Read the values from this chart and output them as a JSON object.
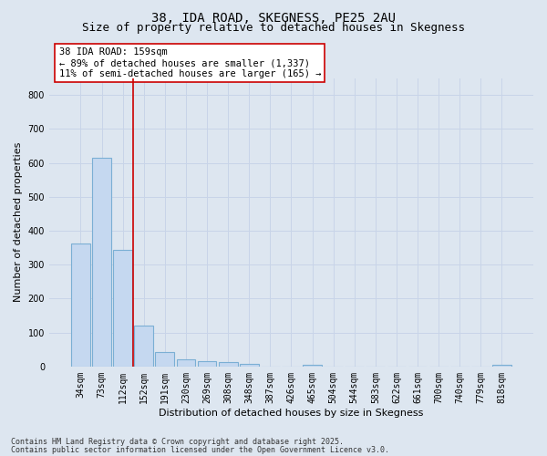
{
  "title1": "38, IDA ROAD, SKEGNESS, PE25 2AU",
  "title2": "Size of property relative to detached houses in Skegness",
  "xlabel": "Distribution of detached houses by size in Skegness",
  "ylabel": "Number of detached properties",
  "categories": [
    "34sqm",
    "73sqm",
    "112sqm",
    "152sqm",
    "191sqm",
    "230sqm",
    "269sqm",
    "308sqm",
    "348sqm",
    "387sqm",
    "426sqm",
    "465sqm",
    "504sqm",
    "544sqm",
    "583sqm",
    "622sqm",
    "661sqm",
    "700sqm",
    "740sqm",
    "779sqm",
    "818sqm"
  ],
  "values": [
    362,
    616,
    345,
    120,
    42,
    22,
    17,
    14,
    8,
    0,
    0,
    5,
    0,
    0,
    0,
    0,
    0,
    0,
    0,
    0,
    4
  ],
  "bar_color": "#c5d8f0",
  "bar_edge_color": "#7bafd4",
  "vline_color": "#cc0000",
  "annotation_text": "38 IDA ROAD: 159sqm\n← 89% of detached houses are smaller (1,337)\n11% of semi-detached houses are larger (165) →",
  "annotation_box_color": "#ffffff",
  "annotation_box_edge": "#cc0000",
  "grid_color": "#c8d4e8",
  "background_color": "#dde6f0",
  "ylim": [
    0,
    850
  ],
  "yticks": [
    0,
    100,
    200,
    300,
    400,
    500,
    600,
    700,
    800
  ],
  "footer1": "Contains HM Land Registry data © Crown copyright and database right 2025.",
  "footer2": "Contains public sector information licensed under the Open Government Licence v3.0.",
  "title_fontsize": 10,
  "subtitle_fontsize": 9,
  "axis_label_fontsize": 8,
  "tick_fontsize": 7,
  "annotation_fontsize": 7.5,
  "footer_fontsize": 6
}
